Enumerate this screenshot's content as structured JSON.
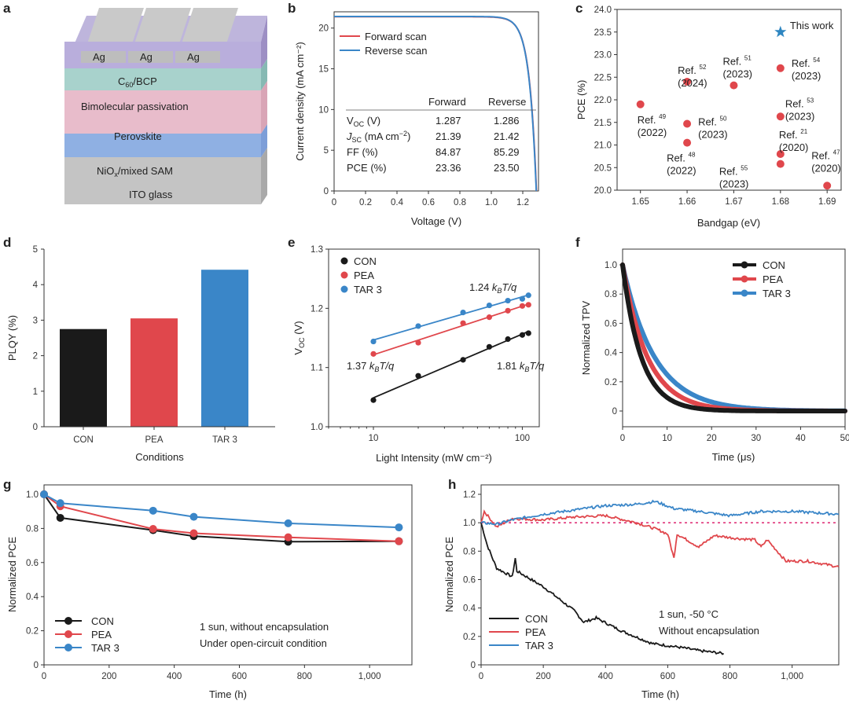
{
  "colors": {
    "con": "#1a1a1a",
    "pea": "#e0474c",
    "tar3": "#3a86c8",
    "accent_star": "#2e86c1",
    "dotted": "#e0357a",
    "text": "#222222"
  },
  "panel_labels": [
    "a",
    "b",
    "c",
    "d",
    "e",
    "f",
    "g",
    "h"
  ],
  "chart_data": [
    {
      "panel": "a",
      "type": "diagram",
      "layers": [
        "Ag",
        "Ag",
        "Ag",
        "C60/BCP",
        "Bimolecular passivation",
        "Perovskite",
        "NiOx/mixed SAM",
        "ITO glass"
      ],
      "layer_texts": {
        "ag": "Ag",
        "c60_main": "C",
        "c60_sub": "60",
        "c60_rest": "/BCP",
        "passivation": "Bimolecular passivation",
        "perovskite": "Perovskite",
        "nio_main": "NiO",
        "nio_sub": "x",
        "nio_rest": "/mixed SAM",
        "ito": "ITO glass"
      }
    },
    {
      "panel": "b",
      "type": "line",
      "xlabel": "Voltage (V)",
      "ylabel": "Current density (mA cm⁻²)",
      "xlim": [
        0,
        1.3
      ],
      "ylim": [
        0,
        22
      ],
      "xticks": [
        "0",
        "0.2",
        "0.4",
        "0.6",
        "0.8",
        "1.0",
        "1.2"
      ],
      "yticks": [
        "0",
        "5",
        "10",
        "15",
        "20"
      ],
      "series": [
        {
          "name": "Forward scan",
          "jsc": 21.39,
          "voc": 1.287
        },
        {
          "name": "Reverse scan",
          "jsc": 21.42,
          "voc": 1.286
        }
      ],
      "table": {
        "headers": [
          "",
          "Forward",
          "Reverse"
        ],
        "rows": [
          {
            "label": "V",
            "sub": "OC",
            "unit": " (V)",
            "f": "1.287",
            "r": "1.286"
          },
          {
            "label": "J",
            "sub": "SC",
            "unit": " (mA cm",
            "sup": "−2",
            "close": ")",
            "f": "21.39",
            "r": "21.42"
          },
          {
            "label": "FF (%)",
            "sub": "",
            "unit": "",
            "f": "84.87",
            "r": "85.29"
          },
          {
            "label": "PCE (%)",
            "sub": "",
            "unit": "",
            "f": "23.36",
            "r": "23.50"
          }
        ]
      }
    },
    {
      "panel": "c",
      "type": "scatter",
      "xlabel": "Bandgap (eV)",
      "ylabel": "PCE (%)",
      "xlim": [
        1.645,
        1.693
      ],
      "ylim": [
        20,
        24
      ],
      "xticks": [
        "1.65",
        "1.66",
        "1.67",
        "1.68",
        "1.69"
      ],
      "yticks": [
        "20.0",
        "20.5",
        "21.0",
        "21.5",
        "22.0",
        "22.5",
        "23.0",
        "23.5",
        "24.0"
      ],
      "points": [
        {
          "x": 1.65,
          "y": 21.9,
          "ref": "49",
          "year": "(2022)"
        },
        {
          "x": 1.66,
          "y": 22.4,
          "ref": "52",
          "year": "(2024)"
        },
        {
          "x": 1.66,
          "y": 21.47,
          "ref": "50",
          "year": "(2023)"
        },
        {
          "x": 1.66,
          "y": 21.05,
          "ref": "48",
          "year": "(2022)"
        },
        {
          "x": 1.67,
          "y": 22.32,
          "ref": "51",
          "year": "(2023)"
        },
        {
          "x": 1.68,
          "y": 22.7,
          "ref": "54",
          "year": "(2023)"
        },
        {
          "x": 1.68,
          "y": 21.63,
          "ref": "53",
          "year": "(2023)"
        },
        {
          "x": 1.68,
          "y": 20.8,
          "ref": "21",
          "year": "(2020)"
        },
        {
          "x": 1.68,
          "y": 20.58,
          "ref": "55",
          "year": "(2023)"
        },
        {
          "x": 1.69,
          "y": 20.1,
          "ref": "47",
          "year": "(2020)"
        }
      ],
      "highlight": {
        "x": 1.68,
        "y": 23.5,
        "label": "This work"
      },
      "ref_word": "Ref."
    },
    {
      "panel": "d",
      "type": "bar",
      "xlabel": "Conditions",
      "ylabel": "PLQY (%)",
      "ylim": [
        0,
        5
      ],
      "yticks": [
        "0",
        "1",
        "2",
        "3",
        "4",
        "5"
      ],
      "categories": [
        "CON",
        "PEA",
        "TAR 3"
      ],
      "values": [
        2.75,
        3.05,
        4.42
      ]
    },
    {
      "panel": "e",
      "type": "scatter",
      "xlabel": "Light Intensity (mW cm⁻²)",
      "ylabel": "V",
      "ylabel_sub": "OC",
      "ylabel_unit": " (V)",
      "xscale": "log",
      "xlim": [
        5,
        130
      ],
      "ylim": [
        1.0,
        1.3
      ],
      "xticks": [
        "10",
        "100"
      ],
      "yticks": [
        "1.0",
        "1.1",
        "1.2",
        "1.3"
      ],
      "x": [
        10,
        20,
        40,
        60,
        80,
        100,
        110
      ],
      "series": [
        {
          "name": "CON",
          "values": [
            1.045,
            1.086,
            1.113,
            1.135,
            1.148,
            1.155,
            1.158
          ],
          "fit": "1.81"
        },
        {
          "name": "PEA",
          "values": [
            1.123,
            1.142,
            1.175,
            1.185,
            1.196,
            1.204,
            1.206
          ],
          "fit": "1.37"
        },
        {
          "name": "TAR 3",
          "values": [
            1.144,
            1.17,
            1.193,
            1.205,
            1.213,
            1.216,
            1.222
          ],
          "fit": "1.24"
        }
      ],
      "fit_suffix": "T/q",
      "fit_kb": "k",
      "fit_kb_sub": "B"
    },
    {
      "panel": "f",
      "type": "line",
      "xlabel": "Time (μs)",
      "ylabel": "Normalized TPV",
      "xlim": [
        0,
        50
      ],
      "ylim": [
        0,
        1.0
      ],
      "xticks": [
        "0",
        "10",
        "20",
        "30",
        "40",
        "50"
      ],
      "yticks": [
        "0",
        "0.2",
        "0.4",
        "0.6",
        "0.8",
        "1.0"
      ],
      "series": [
        {
          "name": "CON",
          "tau_us": 4.2
        },
        {
          "name": "PEA",
          "tau_us": 5.6
        },
        {
          "name": "TAR 3",
          "tau_us": 7.2
        }
      ]
    },
    {
      "panel": "g",
      "type": "line",
      "xlabel": "Time (h)",
      "ylabel": "Normalized PCE",
      "xlim": [
        0,
        1130
      ],
      "ylim": [
        0,
        1.0
      ],
      "xticks": [
        "0",
        "200",
        "400",
        "600",
        "800",
        "1,000"
      ],
      "yticks": [
        "0",
        "0.2",
        "0.4",
        "0.6",
        "0.8",
        "1.0"
      ],
      "x": [
        0,
        50,
        335,
        460,
        750,
        1090
      ],
      "series": [
        {
          "name": "CON",
          "values": [
            1.0,
            0.862,
            0.79,
            0.755,
            0.722,
            0.725
          ]
        },
        {
          "name": "PEA",
          "values": [
            1.0,
            0.93,
            0.797,
            0.772,
            0.748,
            0.725
          ]
        },
        {
          "name": "TAR 3",
          "values": [
            1.0,
            0.948,
            0.904,
            0.868,
            0.83,
            0.806
          ]
        }
      ],
      "annotation": [
        "1 sun, without encapsulation",
        "Under open-circuit condition"
      ]
    },
    {
      "panel": "h",
      "type": "line",
      "xlabel": "Time (h)",
      "ylabel": "Normalized PCE",
      "xlim": [
        0,
        1150
      ],
      "ylim": [
        0,
        1.2
      ],
      "xticks": [
        "0",
        "200",
        "400",
        "600",
        "800",
        "1,000"
      ],
      "yticks": [
        "0",
        "0.2",
        "0.4",
        "0.6",
        "0.8",
        "1.0",
        "1.2"
      ],
      "series": [
        {
          "name": "CON",
          "points": [
            [
              0,
              1.0
            ],
            [
              20,
              0.84
            ],
            [
              50,
              0.68
            ],
            [
              100,
              0.62
            ],
            [
              110,
              0.75
            ],
            [
              115,
              0.66
            ],
            [
              200,
              0.55
            ],
            [
              300,
              0.38
            ],
            [
              330,
              0.3
            ],
            [
              370,
              0.33
            ],
            [
              450,
              0.24
            ],
            [
              550,
              0.15
            ],
            [
              650,
              0.12
            ],
            [
              700,
              0.1
            ],
            [
              780,
              0.08
            ]
          ]
        },
        {
          "name": "PEA",
          "points": [
            [
              0,
              1.0
            ],
            [
              10,
              1.08
            ],
            [
              50,
              0.97
            ],
            [
              100,
              1.03
            ],
            [
              200,
              1.02
            ],
            [
              300,
              1.04
            ],
            [
              400,
              1.05
            ],
            [
              500,
              1.0
            ],
            [
              570,
              0.95
            ],
            [
              600,
              0.92
            ],
            [
              620,
              0.75
            ],
            [
              630,
              0.92
            ],
            [
              700,
              0.83
            ],
            [
              750,
              0.91
            ],
            [
              820,
              0.89
            ],
            [
              880,
              0.88
            ],
            [
              900,
              0.83
            ],
            [
              920,
              0.88
            ],
            [
              980,
              0.73
            ],
            [
              1050,
              0.73
            ],
            [
              1150,
              0.69
            ]
          ]
        },
        {
          "name": "TAR 3",
          "points": [
            [
              0,
              1.0
            ],
            [
              50,
              0.99
            ],
            [
              100,
              1.02
            ],
            [
              200,
              1.06
            ],
            [
              300,
              1.09
            ],
            [
              400,
              1.12
            ],
            [
              500,
              1.13
            ],
            [
              560,
              1.15
            ],
            [
              620,
              1.1
            ],
            [
              700,
              1.08
            ],
            [
              800,
              1.05
            ],
            [
              900,
              1.08
            ],
            [
              1000,
              1.08
            ],
            [
              1150,
              1.06
            ]
          ]
        }
      ],
      "reference_line": 1.0,
      "annotation": [
        "1 sun, -50 °C",
        "Without encapsulation"
      ]
    }
  ]
}
